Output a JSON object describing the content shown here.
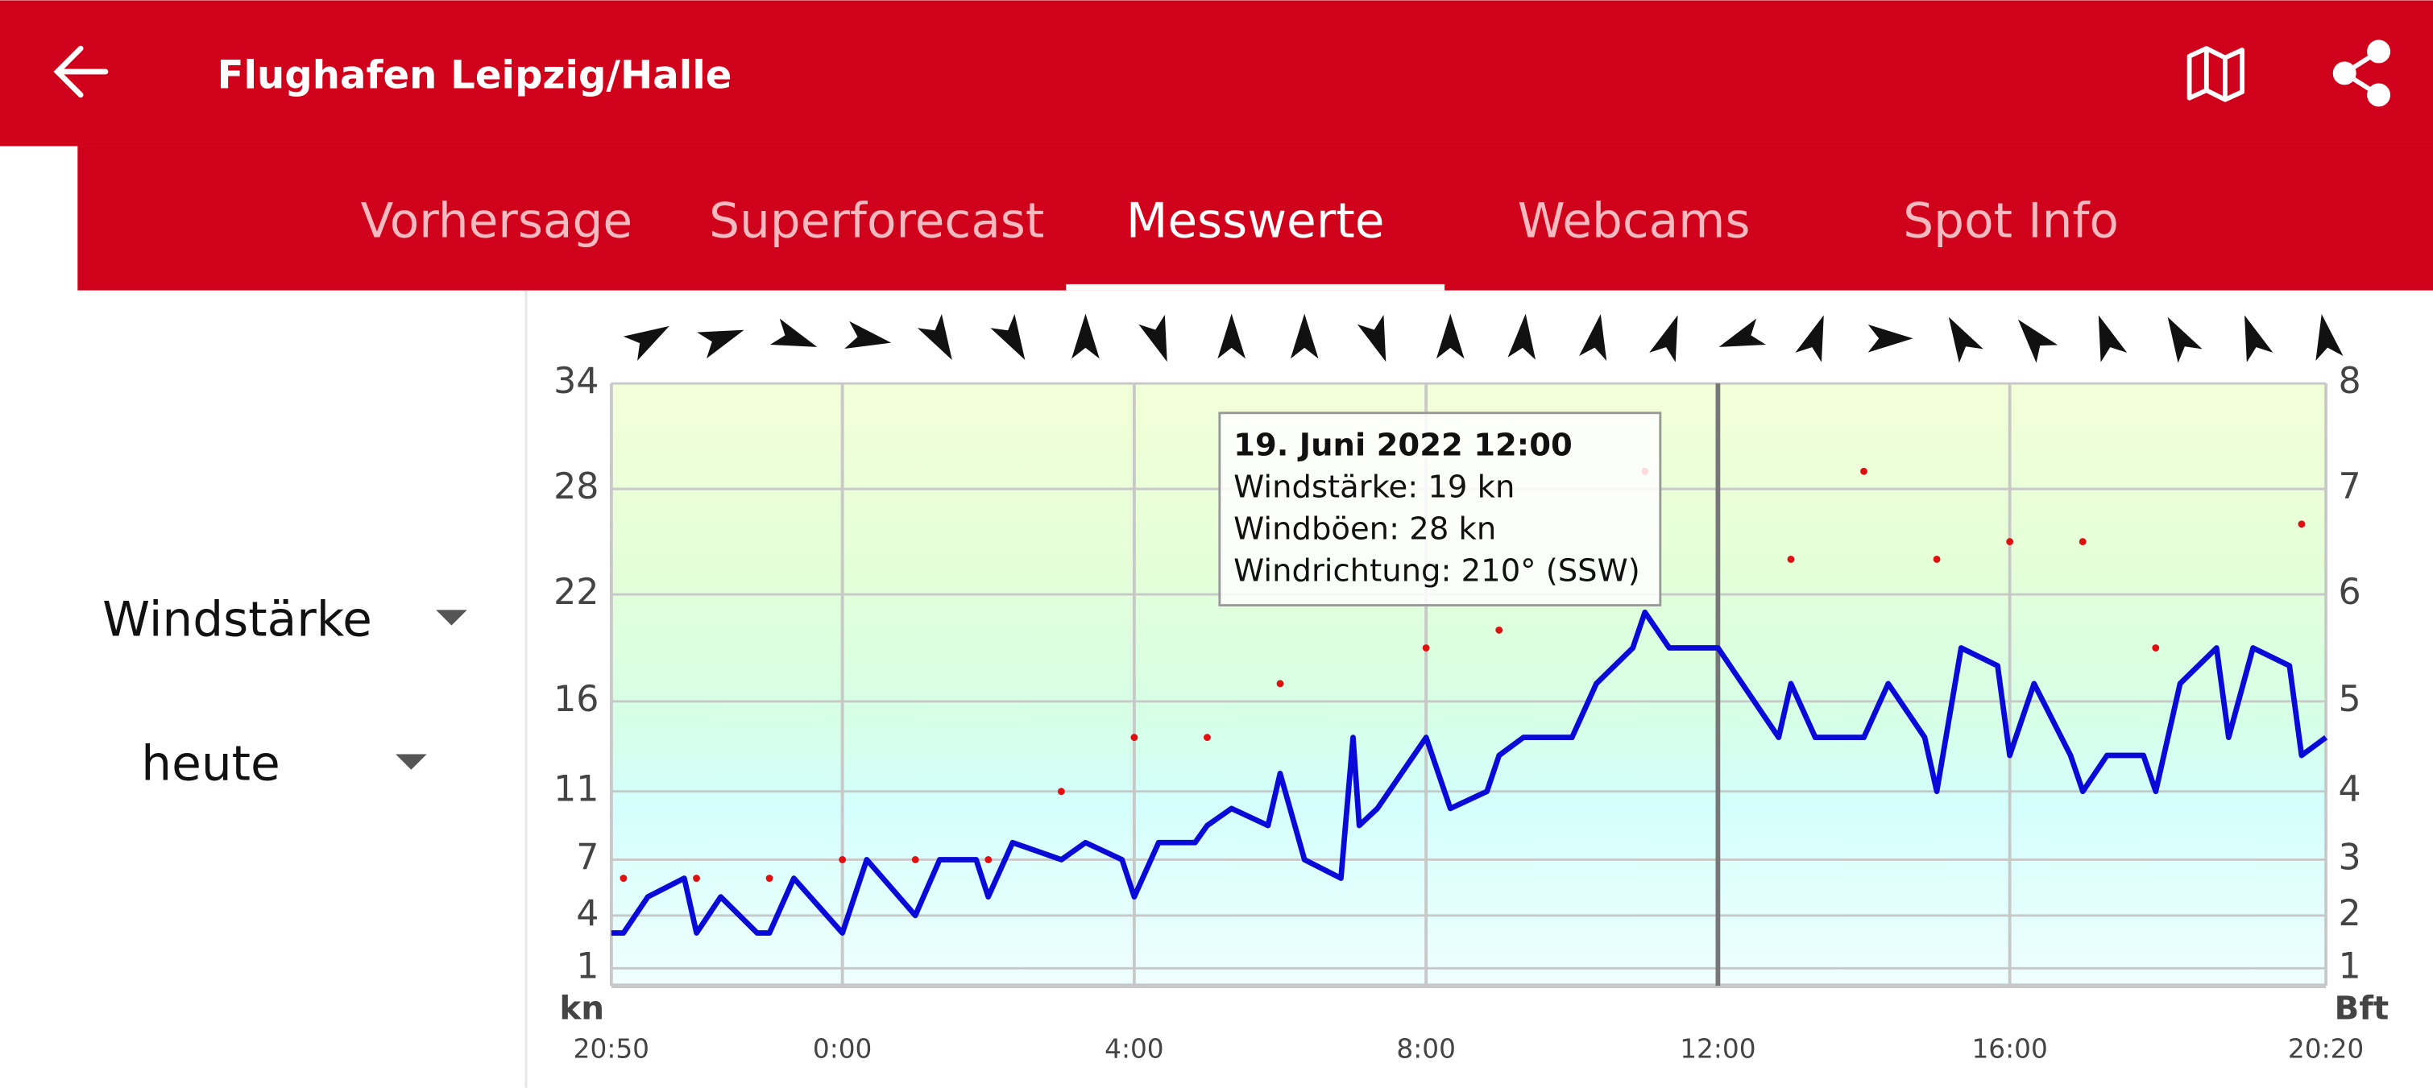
{
  "header": {
    "title": "Flughafen Leipzig/Halle"
  },
  "tabs": [
    "Vorhersage",
    "Superforecast",
    "Messwerte",
    "Webcams",
    "Spot Info"
  ],
  "active_tab": 2,
  "controls": {
    "measure": "Windstärke",
    "period": "heute"
  },
  "chart_data": {
    "type": "line",
    "y_unit": "kn",
    "y2_unit": "Bft",
    "xlim": [
      -190,
      1220
    ],
    "xticks": [
      {
        "value": -190,
        "label": "20:50"
      },
      {
        "value": 0,
        "label": "0:00"
      },
      {
        "value": 240,
        "label": "4:00"
      },
      {
        "value": 480,
        "label": "8:00"
      },
      {
        "value": 720,
        "label": "12:00"
      },
      {
        "value": 960,
        "label": "16:00"
      },
      {
        "value": 1220,
        "label": "20:20"
      }
    ],
    "ylim": [
      0,
      34
    ],
    "yticks": [
      1,
      4,
      7,
      11,
      16,
      22,
      28,
      34
    ],
    "y2ticks": [
      1,
      2,
      3,
      4,
      5,
      6,
      7,
      8
    ],
    "grid": true,
    "cursor_x": 720,
    "series": [
      {
        "color": "#0a0ad8",
        "x": [
          -190,
          -180,
          -160,
          -130,
          -120,
          -100,
          -70,
          -60,
          -40,
          0,
          20,
          60,
          80,
          110,
          120,
          140,
          180,
          200,
          230,
          240,
          260,
          290,
          300,
          320,
          350,
          360,
          380,
          410,
          420,
          425,
          440,
          480,
          500,
          530,
          540,
          560,
          600,
          620,
          650,
          660,
          680,
          720,
          770,
          780,
          800,
          840,
          860,
          890,
          900,
          920,
          950,
          960,
          980,
          1010,
          1020,
          1040,
          1070,
          1080,
          1100,
          1130,
          1140,
          1160,
          1190,
          1200,
          1220
        ],
        "values": [
          3,
          3,
          5,
          6,
          3,
          5,
          3,
          3,
          6,
          3,
          7,
          4,
          7,
          7,
          5,
          8,
          7,
          8,
          7,
          5,
          8,
          8,
          9,
          10,
          9,
          12,
          7,
          6,
          14,
          9,
          10,
          14,
          10,
          11,
          13,
          14,
          14,
          17,
          19,
          21,
          19,
          19,
          14,
          17,
          14,
          14,
          17,
          14,
          11,
          19,
          18,
          13,
          17,
          13,
          11,
          13,
          13,
          11,
          17,
          19,
          14,
          19,
          18,
          13,
          14
        ]
      },
      {
        "color": "#e01010",
        "markers_only": true,
        "x": [
          -180,
          -120,
          -60,
          0,
          60,
          120,
          180,
          240,
          300,
          360,
          480,
          540,
          660,
          780,
          840,
          900,
          960,
          1020,
          1080,
          1200
        ],
        "values": [
          6,
          6,
          6,
          7,
          7,
          7,
          11,
          14,
          14,
          17,
          19,
          20,
          29,
          24,
          29,
          24,
          25,
          25,
          19,
          26
        ]
      }
    ],
    "wind_direction": {
      "x": [
        -160,
        -100,
        -40,
        20,
        80,
        140,
        200,
        260,
        320,
        380,
        440,
        500,
        560,
        620,
        680,
        740,
        800,
        860,
        920,
        980,
        1040,
        1100,
        1160,
        1220
      ],
      "values": [
        60,
        70,
        110,
        100,
        150,
        150,
        0,
        160,
        0,
        0,
        160,
        0,
        5,
        10,
        20,
        250,
        20,
        90,
        330,
        320,
        340,
        330,
        340,
        350
      ]
    },
    "tooltip": {
      "title": "19. Juni 2022 12:00",
      "lines": [
        "Windstärke: 19 kn",
        "Windböen: 28 kn",
        "Windrichtung: 210° (SSW)"
      ]
    }
  }
}
